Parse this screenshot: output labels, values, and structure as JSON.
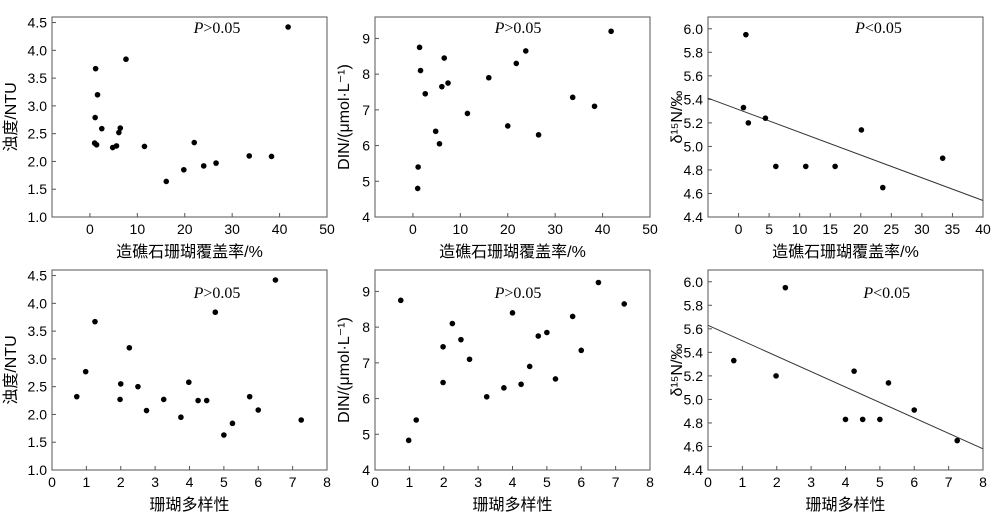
{
  "colors": {
    "axis": "#555555",
    "point": "#000000",
    "trend": "#333333",
    "background": "#ffffff"
  },
  "chart_data": [
    {
      "type": "scatter",
      "title": "",
      "annotation_italic": "P",
      "annotation_rest": ">0.05",
      "xlabel": "造礁石珊瑚覆盖率/%",
      "ylabel": "浊度/NTU",
      "xlim": [
        -8,
        50
      ],
      "ylim": [
        1.0,
        4.6
      ],
      "xticks": [
        0,
        10,
        20,
        30,
        40,
        50
      ],
      "yticks": [
        1.0,
        1.5,
        2.0,
        2.5,
        3.0,
        3.5,
        4.0,
        4.5
      ],
      "ytick_decimals": 1,
      "x": [
        1.0,
        1.1,
        1.2,
        1.4,
        1.6,
        2.5,
        4.8,
        5.6,
        6.1,
        6.4,
        7.6,
        11.5,
        16.1,
        19.8,
        22.0,
        24.0,
        26.6,
        33.6,
        38.3,
        41.8
      ],
      "y": [
        2.33,
        2.79,
        3.67,
        2.3,
        3.2,
        2.59,
        2.25,
        2.28,
        2.52,
        2.6,
        3.84,
        2.27,
        1.64,
        1.85,
        2.34,
        1.92,
        1.97,
        2.1,
        2.09,
        4.42
      ],
      "trendline": null
    },
    {
      "type": "scatter",
      "title": "",
      "annotation_italic": "P",
      "annotation_rest": ">0.05",
      "xlabel": "造礁石珊瑚覆盖率/%",
      "ylabel": "DIN/(μmol·L⁻¹)",
      "xlim": [
        -8,
        50
      ],
      "ylim": [
        4.0,
        9.6
      ],
      "xticks": [
        0,
        10,
        20,
        30,
        40,
        50
      ],
      "yticks": [
        4,
        5,
        6,
        7,
        8,
        9
      ],
      "ytick_decimals": 0,
      "x": [
        1.0,
        1.1,
        1.4,
        1.6,
        2.6,
        4.8,
        5.6,
        6.1,
        6.6,
        7.4,
        11.5,
        16.0,
        20.0,
        21.8,
        23.8,
        26.5,
        33.7,
        38.3,
        41.8
      ],
      "y": [
        4.8,
        5.4,
        8.75,
        8.1,
        7.45,
        6.4,
        6.05,
        7.65,
        8.45,
        7.75,
        6.9,
        7.9,
        6.55,
        8.3,
        8.65,
        6.3,
        7.35,
        7.1,
        9.2
      ],
      "trendline": null
    },
    {
      "type": "scatter",
      "title": "",
      "annotation_italic": "P",
      "annotation_rest": "<0.05",
      "xlabel": "造礁石珊瑚覆盖率/%",
      "ylabel": "δ¹⁵N/‰",
      "xlim": [
        -5,
        40
      ],
      "ylim": [
        4.4,
        6.1
      ],
      "xticks": [
        0,
        5,
        10,
        15,
        20,
        25,
        30,
        35,
        40
      ],
      "yticks": [
        4.4,
        4.6,
        4.8,
        5.0,
        5.2,
        5.4,
        5.6,
        5.8,
        6.0
      ],
      "ytick_decimals": 1,
      "x": [
        0.8,
        1.2,
        1.6,
        4.4,
        6.1,
        11.0,
        15.8,
        20.1,
        23.6,
        33.4
      ],
      "y": [
        5.33,
        5.95,
        5.2,
        5.24,
        4.83,
        4.83,
        4.83,
        5.14,
        4.65,
        4.9
      ],
      "trendline": {
        "x": [
          -5,
          40
        ],
        "y": [
          5.41,
          4.54
        ]
      }
    },
    {
      "type": "scatter",
      "title": "",
      "annotation_italic": "P",
      "annotation_rest": ">0.05",
      "xlabel": "珊瑚多样性",
      "ylabel": "浊度/NTU",
      "xlim": [
        0,
        8
      ],
      "ylim": [
        1.0,
        4.6
      ],
      "xticks": [
        0,
        1,
        2,
        3,
        4,
        5,
        6,
        7,
        8
      ],
      "yticks": [
        1.0,
        1.5,
        2.0,
        2.5,
        3.0,
        3.5,
        4.0,
        4.5
      ],
      "ytick_decimals": 1,
      "x": [
        0.72,
        0.98,
        1.25,
        1.98,
        2.0,
        2.25,
        2.5,
        2.75,
        3.25,
        3.75,
        3.98,
        4.25,
        4.5,
        4.75,
        5.0,
        5.25,
        5.75,
        6.0,
        6.5,
        7.25
      ],
      "y": [
        2.32,
        2.77,
        3.67,
        2.27,
        2.55,
        3.2,
        2.5,
        2.07,
        2.27,
        1.95,
        2.58,
        2.25,
        2.25,
        3.84,
        1.63,
        1.84,
        2.32,
        2.08,
        4.42,
        1.9
      ],
      "trendline": null
    },
    {
      "type": "scatter",
      "title": "",
      "annotation_italic": "P",
      "annotation_rest": ">0.05",
      "xlabel": "珊瑚多样性",
      "ylabel": "DIN/(μmol·L⁻¹)",
      "xlim": [
        0,
        8
      ],
      "ylim": [
        4.0,
        9.6
      ],
      "xticks": [
        0,
        1,
        2,
        3,
        4,
        5,
        6,
        7,
        8
      ],
      "yticks": [
        4,
        5,
        6,
        7,
        8,
        9
      ],
      "ytick_decimals": 0,
      "x": [
        0.75,
        0.98,
        1.2,
        1.98,
        1.98,
        2.25,
        2.5,
        2.75,
        3.25,
        3.75,
        4.0,
        4.25,
        4.5,
        4.75,
        5.0,
        5.25,
        5.75,
        6.0,
        6.5,
        7.25
      ],
      "y": [
        8.75,
        4.83,
        5.4,
        6.45,
        7.45,
        8.1,
        7.65,
        7.1,
        6.05,
        6.3,
        8.4,
        6.4,
        6.9,
        7.75,
        7.85,
        6.55,
        8.3,
        7.35,
        9.25,
        8.65
      ],
      "trendline": null
    },
    {
      "type": "scatter",
      "title": "",
      "annotation_italic": "P",
      "annotation_rest": "<0.05",
      "xlabel": "珊瑚多样性",
      "ylabel": "δ¹⁵N/‰",
      "xlim": [
        0,
        8
      ],
      "ylim": [
        4.4,
        6.1
      ],
      "xticks": [
        0,
        1,
        2,
        3,
        4,
        5,
        6,
        7,
        8
      ],
      "yticks": [
        4.4,
        4.6,
        4.8,
        5.0,
        5.2,
        5.4,
        5.6,
        5.8,
        6.0
      ],
      "ytick_decimals": 1,
      "x": [
        0.75,
        1.98,
        2.25,
        4.0,
        4.25,
        4.5,
        5.0,
        5.25,
        6.0,
        7.25
      ],
      "y": [
        5.33,
        5.2,
        5.95,
        4.83,
        5.24,
        4.83,
        4.83,
        5.14,
        4.91,
        4.65
      ],
      "trendline": {
        "x": [
          0,
          8
        ],
        "y": [
          5.63,
          4.58
        ]
      }
    }
  ]
}
